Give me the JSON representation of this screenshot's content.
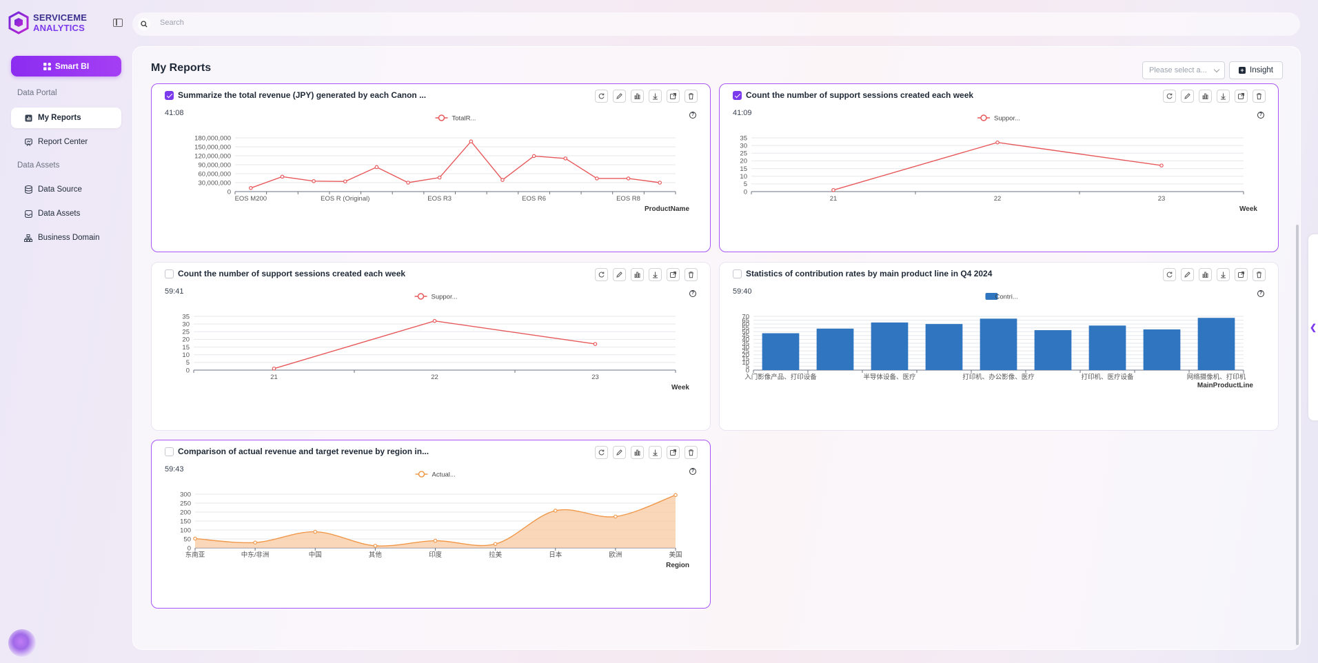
{
  "app": {
    "logo_line1": "SERVICEME",
    "logo_line2": "ANALYTICS"
  },
  "search": {
    "placeholder": "Search"
  },
  "sidebar": {
    "smart_bi": "Smart BI",
    "sections": [
      {
        "label": "Data Portal",
        "items": [
          {
            "label": "My Reports",
            "active": true,
            "icon": "report-icon"
          },
          {
            "label": "Report Center",
            "icon": "report-center-icon"
          }
        ]
      },
      {
        "label": "Data Assets",
        "items": [
          {
            "label": "Data Source",
            "icon": "database-icon"
          },
          {
            "label": "Data Assets",
            "icon": "inbox-icon"
          },
          {
            "label": "Business Domain",
            "icon": "hierarchy-icon"
          }
        ]
      }
    ]
  },
  "page": {
    "title": "My Reports",
    "select_placeholder": "Please select a...",
    "insight_label": "Insight"
  },
  "colors": {
    "accent": "#7c3aed",
    "line_red": "#e8585a",
    "bar_blue": "#2f75bf",
    "area_orange": "#f0984a"
  },
  "cards": [
    {
      "title": "Summarize the total revenue (JPY) generated by each Canon ...",
      "time": "41:08",
      "checked": true
    },
    {
      "title": "Count the number of support sessions created each week",
      "time": "41:09",
      "checked": true
    },
    {
      "title": "Count the number of support sessions created each week",
      "time": "59:41",
      "checked": false
    },
    {
      "title": "Statistics of contribution rates by main product line in Q4 2024",
      "time": "59:40",
      "checked": false
    },
    {
      "title": "Comparison of actual revenue and target revenue by region in...",
      "time": "59:43",
      "checked": false
    }
  ],
  "chart_data": [
    {
      "type": "line",
      "legend": "TotalR...",
      "xlabel": "ProductName",
      "tick_labels": [
        "EOS M200",
        "EOS R (Original)",
        "EOS R3",
        "EOS R6",
        "EOS R8"
      ],
      "y_ticks": [
        "0",
        "30,000,000",
        "60,000,000",
        "90,000,000",
        "120,000,000",
        "150,000,000",
        "180,000,000"
      ],
      "ylim": [
        0,
        180000000
      ],
      "values": [
        12000000,
        50000000,
        35000000,
        34000000,
        82000000,
        30000000,
        47000000,
        168000000,
        39000000,
        119000000,
        111000000,
        44000000,
        44000000,
        30000000
      ]
    },
    {
      "type": "line",
      "legend": "Suppor...",
      "xlabel": "Week",
      "categories": [
        "21",
        "22",
        "23"
      ],
      "y_ticks": [
        "0",
        "5",
        "10",
        "15",
        "20",
        "25",
        "30",
        "35"
      ],
      "ylim": [
        0,
        35
      ],
      "values": [
        1,
        32,
        17
      ]
    },
    {
      "type": "line",
      "legend": "Suppor...",
      "xlabel": "Week",
      "categories": [
        "21",
        "22",
        "23"
      ],
      "y_ticks": [
        "0",
        "5",
        "10",
        "15",
        "20",
        "25",
        "30",
        "35"
      ],
      "ylim": [
        0,
        35
      ],
      "values": [
        1,
        32,
        17
      ]
    },
    {
      "type": "bar",
      "legend": "Contri...",
      "xlabel": "MainProductLine",
      "tick_labels": [
        "入门影像产品、打印设备",
        "半导体设备、医疗",
        "打印机、办公影像、医疗",
        "打印机、医疗设备",
        "网络摄像机、打印机"
      ],
      "y_ticks": [
        "0",
        "5",
        "10",
        "15",
        "20",
        "25",
        "30",
        "35",
        "40",
        "45",
        "50",
        "55",
        "60",
        "65",
        "70"
      ],
      "ylim": [
        0,
        70
      ],
      "values": [
        48,
        54,
        62,
        60,
        67,
        52,
        58,
        53,
        68
      ]
    },
    {
      "type": "area",
      "legend": "Actual...",
      "xlabel": "Region",
      "categories": [
        "东南亚",
        "中东/非洲",
        "中国",
        "其他",
        "印度",
        "拉美",
        "日本",
        "欧洲",
        "美国"
      ],
      "y_ticks": [
        "0",
        "50",
        "100",
        "150",
        "200",
        "250",
        "300"
      ],
      "ylim": [
        0,
        300
      ],
      "values": [
        52,
        30,
        90,
        12,
        40,
        22,
        208,
        175,
        295
      ]
    }
  ]
}
